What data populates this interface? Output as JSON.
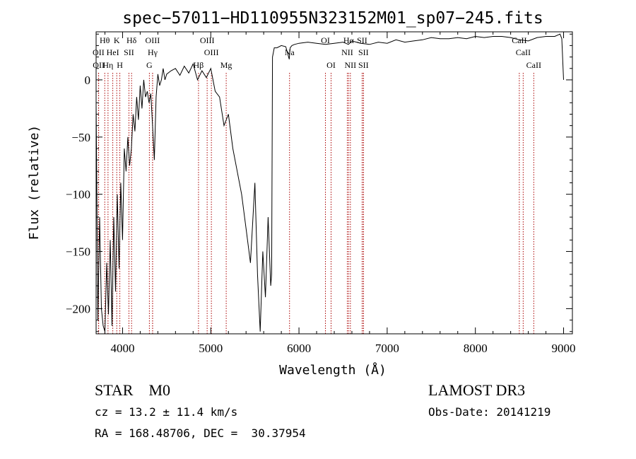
{
  "chart_data": {
    "type": "line",
    "title": "spec−57011−HD110955N323152M01_sp07−245.fits",
    "xlabel": "Wavelength (Å)",
    "ylabel": "Flux (relative)",
    "xlim": [
      3700,
      9100
    ],
    "ylim": [
      -222,
      42
    ],
    "xticks": [
      4000,
      5000,
      6000,
      7000,
      8000,
      9000
    ],
    "xtick_labels": [
      "4000",
      "5000",
      "6000",
      "7000",
      "8000",
      "9000"
    ],
    "yticks": [
      0,
      -50,
      -100,
      -150,
      -200
    ],
    "ytick_labels": [
      "0",
      "−50",
      "−100",
      "−150",
      "−200"
    ],
    "grid": false,
    "series": [
      {
        "x": [
          3700,
          3720,
          3740,
          3760,
          3780,
          3800,
          3820,
          3840,
          3860,
          3880,
          3900,
          3920,
          3940,
          3960,
          3980,
          4000,
          4020,
          4040,
          4060,
          4080,
          4100,
          4120,
          4140,
          4160,
          4180,
          4200,
          4220,
          4240,
          4260,
          4280,
          4300,
          4320,
          4340,
          4360,
          4380,
          4400,
          4420,
          4440,
          4460,
          4480,
          4500,
          4550,
          4600,
          4650,
          4700,
          4750,
          4800,
          4850,
          4900,
          4950,
          5000,
          5050,
          5100,
          5150,
          5200,
          5250,
          5300,
          5350,
          5400,
          5450,
          5500,
          5530,
          5560,
          5590,
          5620,
          5650,
          5680,
          5690,
          5700,
          5720,
          5750,
          5800,
          5850,
          5890,
          5900,
          5920,
          5950,
          6000,
          6100,
          6200,
          6300,
          6400,
          6500,
          6560,
          6600,
          6700,
          6800,
          6900,
          7000,
          7100,
          7200,
          7300,
          7400,
          7500,
          7600,
          7700,
          7800,
          7900,
          8000,
          8100,
          8200,
          8300,
          8400,
          8500,
          8600,
          8700,
          8800,
          8900,
          8960,
          8980,
          9000
        ],
        "y": [
          -20,
          -210,
          -120,
          -200,
          -215,
          -220,
          -160,
          -205,
          -140,
          -215,
          -120,
          -185,
          -100,
          -165,
          -90,
          -140,
          -60,
          -80,
          -50,
          -75,
          -60,
          -30,
          -45,
          -15,
          -35,
          -5,
          -25,
          0,
          -15,
          -10,
          -20,
          -12,
          -40,
          -70,
          -15,
          5,
          -5,
          0,
          10,
          0,
          5,
          8,
          10,
          4,
          12,
          6,
          14,
          0,
          8,
          2,
          10,
          -10,
          -15,
          -40,
          -30,
          -60,
          -80,
          -100,
          -130,
          -160,
          -90,
          -170,
          -220,
          -150,
          -190,
          -120,
          -180,
          -170,
          20,
          28,
          28,
          30,
          29,
          18,
          28,
          30,
          31,
          32,
          33,
          32,
          31,
          32,
          33,
          31,
          34,
          32,
          31,
          33,
          32,
          35,
          33,
          34,
          35,
          37,
          36,
          36,
          37,
          36,
          38,
          37,
          38,
          38,
          37,
          35,
          34,
          37,
          38,
          38,
          40,
          36,
          0
        ]
      }
    ],
    "lines": [
      {
        "label": "Hθ",
        "x": 3798,
        "row": 0
      },
      {
        "label": "OII",
        "x": 3727,
        "row": 1
      },
      {
        "label": "OII",
        "x": 3729,
        "row": 2
      },
      {
        "label": "Hη",
        "x": 3835,
        "row": 2
      },
      {
        "label": "HeI",
        "x": 3889,
        "row": 1
      },
      {
        "label": "K",
        "x": 3934,
        "row": 0
      },
      {
        "label": "H",
        "x": 3969,
        "row": 2
      },
      {
        "label": "SII",
        "x": 4072,
        "row": 1
      },
      {
        "label": "Hδ",
        "x": 4102,
        "row": 0
      },
      {
        "label": "G",
        "x": 4304,
        "row": 2
      },
      {
        "label": "OIII",
        "x": 4340,
        "row": 0
      },
      {
        "label": "Hγ",
        "x": 4341,
        "row": 1
      },
      {
        "label": "Hβ",
        "x": 4861,
        "row": 2
      },
      {
        "label": "OIII",
        "x": 4959,
        "row": 0
      },
      {
        "label": "OIII",
        "x": 5007,
        "row": 1
      },
      {
        "label": "Mg",
        "x": 5175,
        "row": 2
      },
      {
        "label": "Na",
        "x": 5893,
        "row": 1
      },
      {
        "label": "OI",
        "x": 6300,
        "row": 0
      },
      {
        "label": "OI",
        "x": 6364,
        "row": 2
      },
      {
        "label": "Hα",
        "x": 6563,
        "row": 0
      },
      {
        "label": "NII",
        "x": 6548,
        "row": 1
      },
      {
        "label": "NII",
        "x": 6583,
        "row": 2
      },
      {
        "label": "SII",
        "x": 6716,
        "row": 0
      },
      {
        "label": "SII",
        "x": 6731,
        "row": 1
      },
      {
        "label": "SII",
        "x": 6731,
        "row": 2
      },
      {
        "label": "CaII",
        "x": 8498,
        "row": 0
      },
      {
        "label": "CaII",
        "x": 8542,
        "row": 1
      },
      {
        "label": "CaII",
        "x": 8662,
        "row": 2
      }
    ]
  },
  "info": {
    "class_line": "STAR    M0",
    "survey": "LAMOST DR3",
    "cz_line": "cz = 13.2 ± 11.4 km/s",
    "obs_date": "Obs-Date: 20141219",
    "radec_line": "RA = 168.48706, DEC =  30.37954"
  },
  "colors": {
    "spectrum": "#000000",
    "line_markers": "#aa0000"
  }
}
